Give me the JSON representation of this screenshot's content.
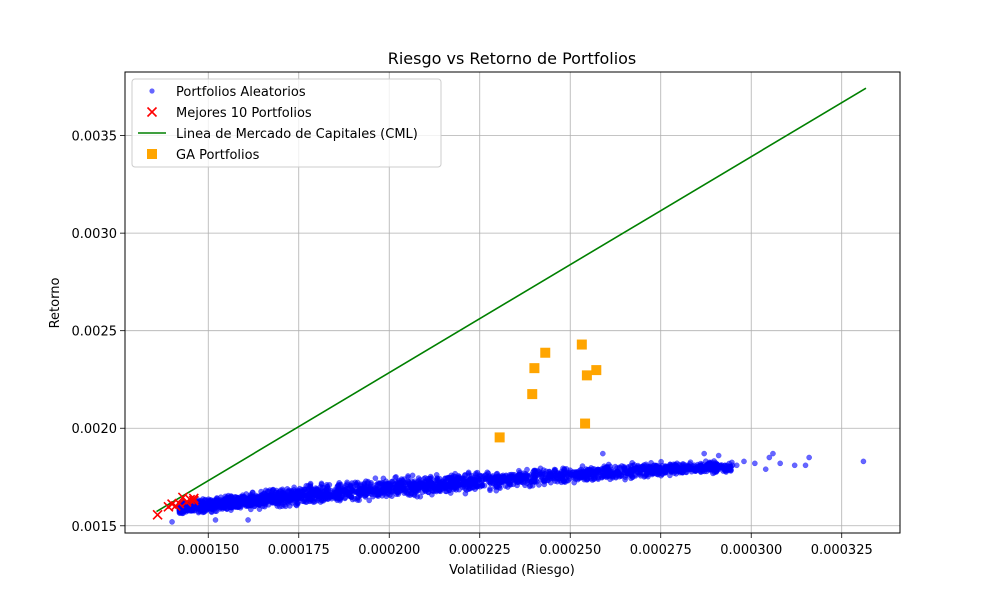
{
  "chart_data": {
    "type": "scatter",
    "title": "Riesgo vs Retorno de Portfolios",
    "xlabel": "Volatilidad (Riesgo)",
    "ylabel": "Retorno",
    "xlim": [
      0.000127,
      0.0003411
    ],
    "ylim": [
      0.001463,
      0.003826
    ],
    "xticks": [
      0.00015,
      0.000175,
      0.0002,
      0.000225,
      0.00025,
      0.000275,
      0.0003,
      0.000325
    ],
    "xtick_labels": [
      "0.000150",
      "0.000175",
      "0.000200",
      "0.000225",
      "0.000250",
      "0.000275",
      "0.000300",
      "0.000325"
    ],
    "yticks": [
      0.0015,
      0.002,
      0.0025,
      0.003,
      0.0035
    ],
    "ytick_labels": [
      "0.0015",
      "0.0020",
      "0.0025",
      "0.0030",
      "0.0035"
    ],
    "grid": true,
    "legend_position": "top-left",
    "legend": [
      {
        "label": "Portfolios Aleatorios",
        "marker": "circle",
        "color": "#0000ff"
      },
      {
        "label": "Mejores 10 Portfolios",
        "marker": "x",
        "color": "#ff0000"
      },
      {
        "label": "Linea de Mercado de Capitales (CML)",
        "marker": "line",
        "color": "#008000"
      },
      {
        "label": "GA Portfolios",
        "marker": "square",
        "color": "#ffa500"
      }
    ],
    "series": [
      {
        "name": "Portfolios Aleatorios",
        "kind": "scatter",
        "color": "#0000ff",
        "band": {
          "x": [
            0.000142,
            0.00016,
            0.000175,
            0.00019,
            0.000205,
            0.00022,
            0.000235,
            0.00025,
            0.000265,
            0.00028,
            0.000295
          ],
          "y_low": [
            0.00155,
            0.00157,
            0.001585,
            0.00161,
            0.001635,
            0.001655,
            0.00168,
            0.00171,
            0.00173,
            0.00175,
            0.00176
          ],
          "y_high": [
            0.00163,
            0.00168,
            0.00172,
            0.001745,
            0.001765,
            0.001785,
            0.0018,
            0.001815,
            0.00183,
            0.00184,
            0.00184
          ]
        },
        "outliers": [
          {
            "x": 0.000296,
            "y": 0.00181
          },
          {
            "x": 0.000298,
            "y": 0.00183
          },
          {
            "x": 0.000301,
            "y": 0.00182
          },
          {
            "x": 0.000304,
            "y": 0.00179
          },
          {
            "x": 0.000305,
            "y": 0.00185
          },
          {
            "x": 0.000306,
            "y": 0.00187
          },
          {
            "x": 0.000308,
            "y": 0.00182
          },
          {
            "x": 0.000312,
            "y": 0.00181
          },
          {
            "x": 0.000315,
            "y": 0.00181
          },
          {
            "x": 0.000316,
            "y": 0.00185
          },
          {
            "x": 0.000331,
            "y": 0.00183
          },
          {
            "x": 0.000259,
            "y": 0.00187
          },
          {
            "x": 0.000287,
            "y": 0.00187
          },
          {
            "x": 0.000291,
            "y": 0.00186
          },
          {
            "x": 0.00014,
            "y": 0.00152
          },
          {
            "x": 0.000152,
            "y": 0.00153
          },
          {
            "x": 0.000161,
            "y": 0.00153
          }
        ]
      },
      {
        "name": "Mejores 10 Portfolios",
        "kind": "scatter",
        "color": "#ff0000",
        "points": [
          {
            "x": 0.000136,
            "y": 0.001556
          },
          {
            "x": 0.000139,
            "y": 0.001597
          },
          {
            "x": 0.00014,
            "y": 0.001611
          },
          {
            "x": 0.000141,
            "y": 0.001602
          },
          {
            "x": 0.000142,
            "y": 0.001614
          },
          {
            "x": 0.000143,
            "y": 0.001645
          },
          {
            "x": 0.000144,
            "y": 0.001622
          },
          {
            "x": 0.000145,
            "y": 0.001634
          },
          {
            "x": 0.000146,
            "y": 0.001629
          },
          {
            "x": 0.000146,
            "y": 0.00164
          }
        ]
      },
      {
        "name": "Linea de Mercado de Capitales (CML)",
        "kind": "line",
        "color": "#008000",
        "points": [
          {
            "x": 0.0001357,
            "y": 0.001573
          },
          {
            "x": 0.0003317,
            "y": 0.003743
          }
        ]
      },
      {
        "name": "GA Portfolios",
        "kind": "scatter",
        "color": "#ffa500",
        "points": [
          {
            "x": 0.0002305,
            "y": 0.001953
          },
          {
            "x": 0.0002395,
            "y": 0.002175
          },
          {
            "x": 0.0002401,
            "y": 0.002308
          },
          {
            "x": 0.0002431,
            "y": 0.002387
          },
          {
            "x": 0.0002532,
            "y": 0.002429
          },
          {
            "x": 0.0002541,
            "y": 0.002024
          },
          {
            "x": 0.0002546,
            "y": 0.002271
          },
          {
            "x": 0.0002572,
            "y": 0.002298
          }
        ]
      }
    ]
  }
}
